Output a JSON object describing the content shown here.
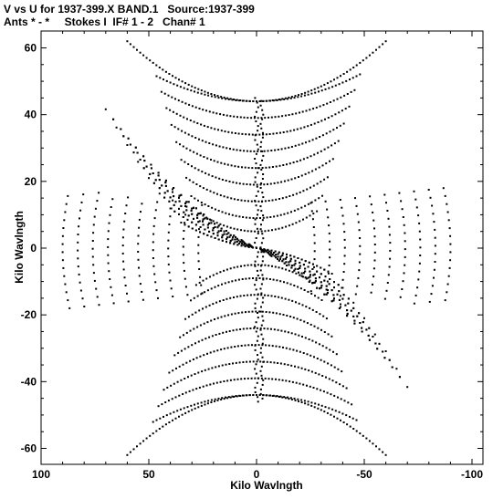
{
  "header": {
    "line1": "V vs U for 1937-399.X BAND.1   Source:1937-399",
    "line2": "Ants * - *     Stokes I  IF# 1 - 2   Chan# 1"
  },
  "chart_data": {
    "type": "scatter",
    "title": "V vs U for 1937-399.X BAND.1   Source:1937-399",
    "subtitle": "Ants * - *     Stokes I  IF# 1 - 2   Chan# 1",
    "xlabel": "Kilo Wavlngth",
    "ylabel": "Kilo Wavlngth",
    "xlim": [
      100,
      -100
    ],
    "ylim": [
      -64,
      64
    ],
    "x_ticks": [
      "100",
      "50",
      "0",
      "-50",
      "-100"
    ],
    "y_ticks": [
      "60",
      "40",
      "20",
      "0",
      "-20",
      "-40",
      "-60"
    ],
    "grid": false,
    "point_color": "#000000",
    "note": "UV coverage tracks; points shown as a regenerated representative sample of the plotted coverage"
  }
}
